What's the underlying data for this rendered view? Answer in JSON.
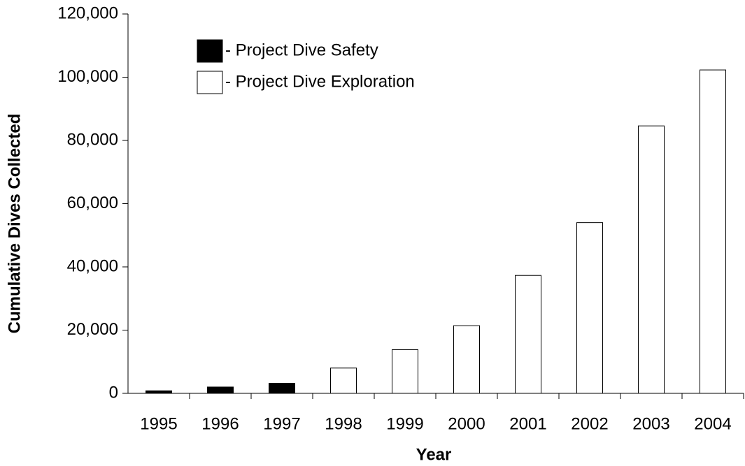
{
  "chart_data": {
    "type": "bar",
    "x_label": "Year",
    "y_label": "Cumulative Dives Collected",
    "categories": [
      "1995",
      "1996",
      "1997",
      "1998",
      "1999",
      "2000",
      "2001",
      "2002",
      "2003",
      "2004"
    ],
    "series": [
      {
        "name": "- Project Dive Safety",
        "color": "#000000",
        "values": [
          800,
          2000,
          3200,
          null,
          null,
          null,
          null,
          null,
          null,
          null
        ]
      },
      {
        "name": "- Project Dive Exploration",
        "color": "#ffffff",
        "values": [
          null,
          null,
          null,
          8000,
          13800,
          21400,
          37300,
          54000,
          84600,
          102300
        ]
      }
    ],
    "ylim": [
      0,
      120000
    ],
    "yticks": [
      0,
      {
        "value": 20000,
        "label": "20,000"
      },
      {
        "value": 40000,
        "label": "40,000"
      },
      {
        "value": 60000,
        "label": "60,000"
      },
      {
        "value": 80000,
        "label": "80,000"
      },
      {
        "value": 100000,
        "label": "100,000"
      },
      {
        "value": 120000,
        "label": "120,000"
      }
    ],
    "legend": "upper left"
  }
}
